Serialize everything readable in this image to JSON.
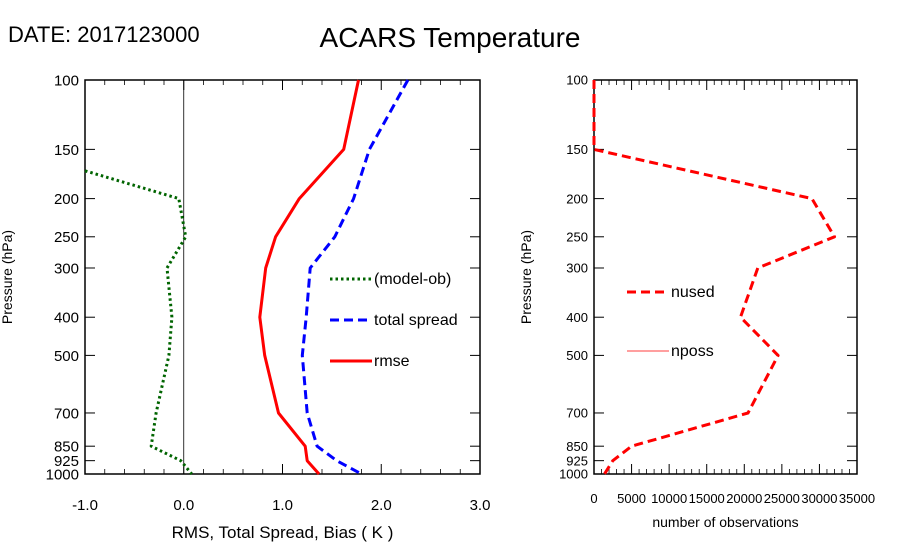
{
  "header": {
    "date_label": "DATE: 2017123000",
    "title": "ACARS Temperature"
  },
  "chart_data": [
    {
      "type": "line",
      "y_scale": "log",
      "y_reversed": true,
      "ylabel": "Pressure (hPa)",
      "xlabel": "RMS, Total Spread, Bias ( K )",
      "xlim": [
        -1.0,
        3.0
      ],
      "ylim": [
        1000,
        100
      ],
      "xticks": [
        "-1.0",
        "0.0",
        "1.0",
        "2.0",
        "3.0"
      ],
      "yticks": [
        "100",
        "150",
        "200",
        "250",
        "300",
        "400",
        "500",
        "700",
        "850",
        "925",
        "1000"
      ],
      "pressure_levels": [
        100,
        150,
        200,
        250,
        300,
        400,
        500,
        700,
        850,
        925,
        1000
      ],
      "zero_line": true,
      "legend_placement": "middle-right",
      "series": [
        {
          "name": "(model-ob)",
          "color": "#006400",
          "style": "dotted",
          "pressure": [
            170,
            200,
            250,
            300,
            400,
            500,
            700,
            850,
            925,
            1000
          ],
          "values": [
            -1.0,
            -0.05,
            0.02,
            -0.17,
            -0.12,
            -0.15,
            -0.28,
            -0.33,
            -0.03,
            0.08
          ]
        },
        {
          "name": "total spread",
          "color": "#0000ff",
          "style": "dashed",
          "pressure": [
            100,
            150,
            200,
            250,
            300,
            400,
            500,
            700,
            850,
            925,
            1000
          ],
          "values": [
            2.27,
            1.88,
            1.72,
            1.53,
            1.28,
            1.24,
            1.2,
            1.25,
            1.35,
            1.55,
            1.8
          ]
        },
        {
          "name": "rmse",
          "color": "#ff0000",
          "style": "solid",
          "pressure": [
            100,
            150,
            200,
            250,
            300,
            400,
            500,
            700,
            850,
            925,
            1000
          ],
          "values": [
            1.77,
            1.62,
            1.17,
            0.93,
            0.83,
            0.77,
            0.82,
            0.96,
            1.23,
            1.25,
            1.37
          ]
        }
      ]
    },
    {
      "type": "line",
      "y_scale": "log",
      "y_reversed": true,
      "ylabel": "Pressure (hPa)",
      "xlabel": "number of observations",
      "xlim": [
        0,
        35000
      ],
      "ylim": [
        1000,
        100
      ],
      "xticks": [
        "0",
        "5000",
        "10000",
        "15000",
        "20000",
        "25000",
        "30000",
        "35000"
      ],
      "yticks": [
        "100",
        "150",
        "200",
        "250",
        "300",
        "400",
        "500",
        "700",
        "850",
        "925",
        "1000"
      ],
      "pressure_levels": [
        100,
        150,
        200,
        250,
        300,
        400,
        500,
        700,
        850,
        925,
        1000
      ],
      "legend_placement": "middle-left",
      "series": [
        {
          "name": "nused",
          "color": "#ff0000",
          "style": "dashed",
          "pressure": [
            100,
            150,
            200,
            250,
            300,
            400,
            500,
            700,
            850,
            925,
            1000
          ],
          "values": [
            0,
            0,
            29000,
            32000,
            21800,
            19500,
            24500,
            20500,
            5000,
            2500,
            1400
          ]
        },
        {
          "name": "nposs",
          "color": "#ff6666",
          "style": "solid",
          "pressure": [],
          "values": []
        }
      ]
    }
  ]
}
